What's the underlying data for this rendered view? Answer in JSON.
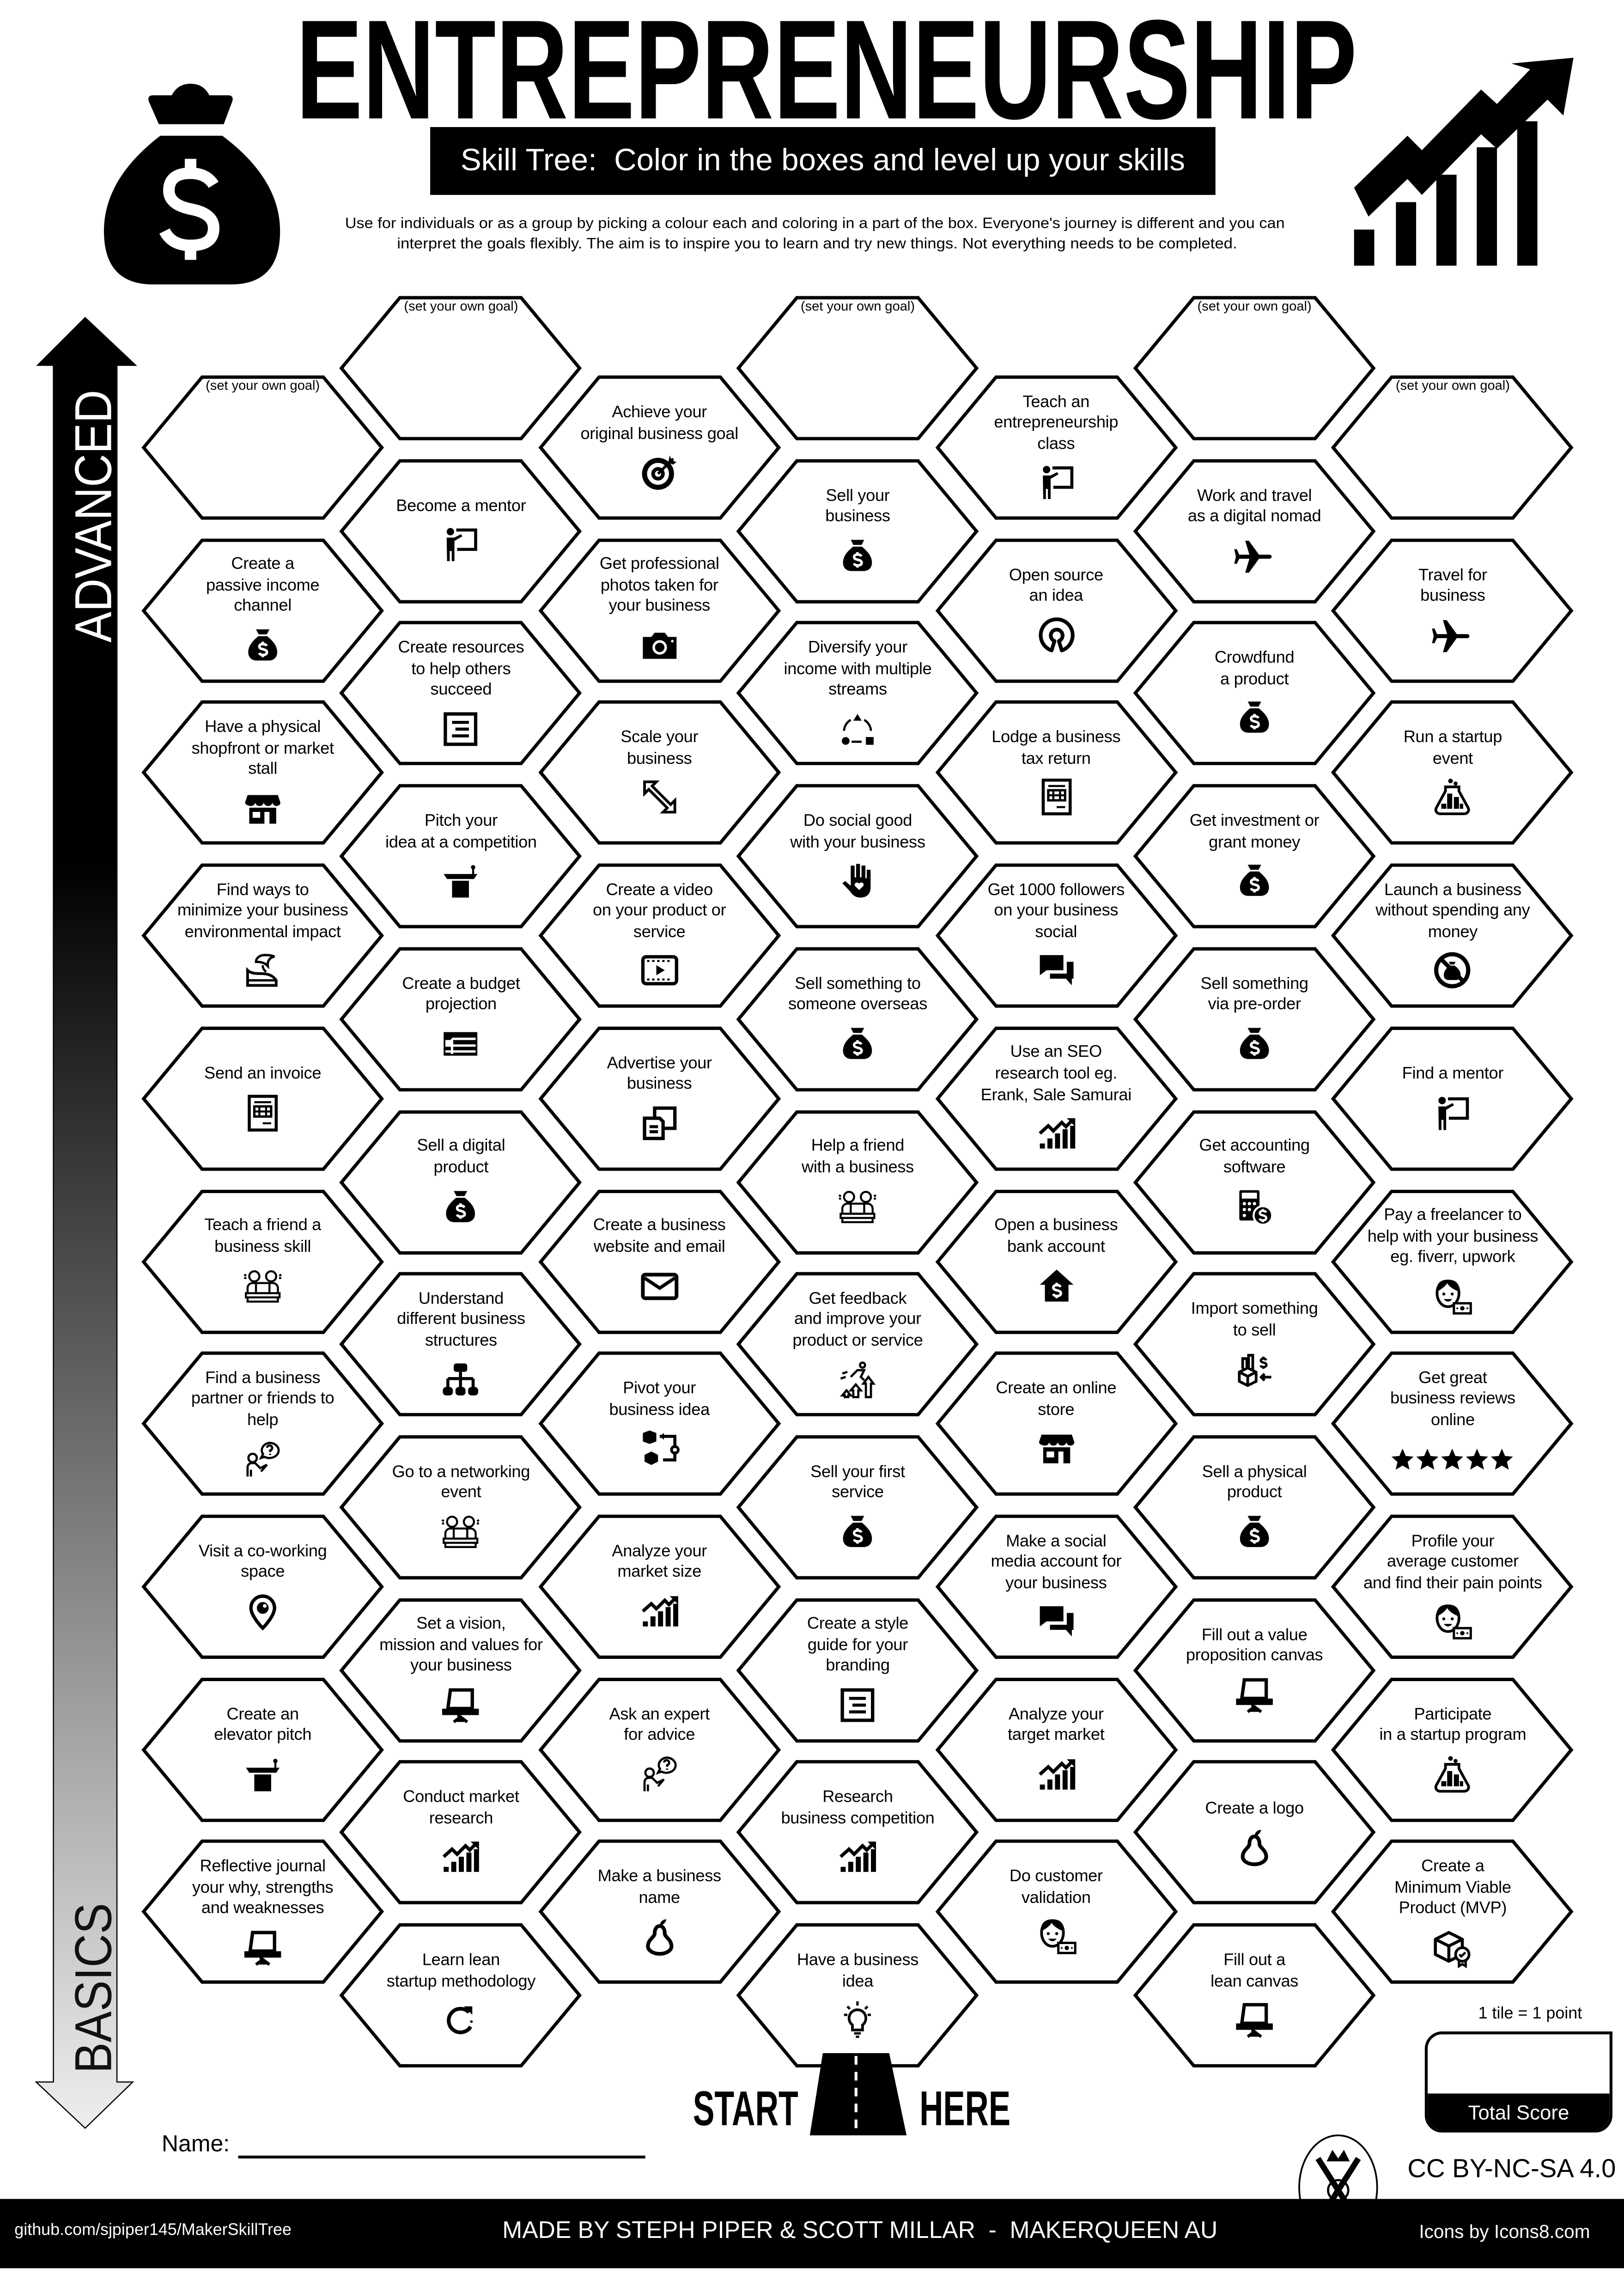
{
  "header": {
    "title": "ENTREPRENEURSHIP",
    "subtitle": "Skill Tree:  Color in the boxes and level up your skills",
    "description_line1": "Use for individuals or as a group by picking a colour each and coloring in a part of the box.  Everyone's journey is different and you can",
    "description_line2": "interpret the goals flexibly.  The aim is to inspire you to learn and try new things. Not everything needs to be completed.",
    "left_icon": "money-bag-icon",
    "right_icon": "growth-chart-icon"
  },
  "axis": {
    "top_label": "ADVANCED",
    "bottom_label": "BASICS",
    "direction": "up"
  },
  "goal_placeholder": "(set your own goal)",
  "columns": [
    [
      {
        "goal": true
      },
      {
        "label": "Create a\npassive income\nchannel",
        "icon": "money-bag"
      },
      {
        "label": "Have a physical\nshopfront or market\nstall",
        "icon": "shop"
      },
      {
        "label": "Find ways to\nminimize your business\nenvironmental impact",
        "icon": "eco"
      },
      {
        "label": "Send an invoice",
        "icon": "invoice"
      },
      {
        "label": "Teach a friend a\nbusiness skill",
        "icon": "friends"
      },
      {
        "label": "Find a business\npartner or friends to\nhelp",
        "icon": "question-person"
      },
      {
        "label": "Visit a co-working\nspace",
        "icon": "pin"
      },
      {
        "label": "Create an\nelevator pitch",
        "icon": "podium"
      },
      {
        "label": "Reflective journal\nyour why, strengths\nand weaknesses",
        "icon": "easel"
      }
    ],
    [
      {
        "goal": true
      },
      {
        "label": "Become a mentor",
        "icon": "presenter"
      },
      {
        "label": "Create resources\nto help others\nsucceed",
        "icon": "doc-lines"
      },
      {
        "label": "Pitch your\nidea at a competition",
        "icon": "podium"
      },
      {
        "label": "Create a budget\nprojection",
        "icon": "table"
      },
      {
        "label": "Sell a digital\nproduct",
        "icon": "money-bag"
      },
      {
        "label": "Understand\ndifferent business\nstructures",
        "icon": "org"
      },
      {
        "label": "Go to a networking\nevent",
        "icon": "friends"
      },
      {
        "label": "Set a vision,\nmission and values for\nyour business",
        "icon": "easel"
      },
      {
        "label": "Conduct market\nresearch",
        "icon": "trend"
      },
      {
        "label": "Learn lean\nstartup methodology",
        "icon": "refresh"
      }
    ],
    [
      {
        "label": "Achieve your\noriginal business goal",
        "icon": "target"
      },
      {
        "label": "Get professional\nphotos taken for\nyour business",
        "icon": "camera"
      },
      {
        "label": "Scale your\nbusiness",
        "icon": "scale"
      },
      {
        "label": "Create a video\non your product or\nservice",
        "icon": "video"
      },
      {
        "label": "Advertise your\nbusiness",
        "icon": "copy"
      },
      {
        "label": "Create a business\nwebsite and email",
        "icon": "envelope"
      },
      {
        "label": "Pivot your\nbusiness idea",
        "icon": "pivot"
      },
      {
        "label": "Analyze your\nmarket size",
        "icon": "trend"
      },
      {
        "label": "Ask an expert\nfor advice",
        "icon": "question-person"
      },
      {
        "label": "Make a business\nname",
        "icon": "pear"
      }
    ],
    [
      {
        "goal": true
      },
      {
        "label": "Sell your\nbusiness",
        "icon": "money-bag"
      },
      {
        "label": "Diversify your\nincome with multiple\nstreams",
        "icon": "diversify"
      },
      {
        "label": "Do social good\nwith your business",
        "icon": "hand"
      },
      {
        "label": "Sell something to\nsomeone overseas",
        "icon": "money-bag"
      },
      {
        "label": "Help a friend\nwith a business",
        "icon": "friends"
      },
      {
        "label": "Get feedback\nand improve your\nproduct or service",
        "icon": "improve"
      },
      {
        "label": "Sell your first\nservice",
        "icon": "money-bag"
      },
      {
        "label": "Create a style\nguide for your\nbranding",
        "icon": "doc-lines"
      },
      {
        "label": "Research\nbusiness competition",
        "icon": "trend"
      },
      {
        "label": "Have a business\nidea",
        "icon": "bulb"
      }
    ],
    [
      {
        "label": "Teach an\nentrepreneurship\nclass",
        "icon": "presenter"
      },
      {
        "label": "Open source\nan idea",
        "icon": "open-source"
      },
      {
        "label": "Lodge a business\ntax return",
        "icon": "invoice"
      },
      {
        "label": "Get 1000 followers\non your business\nsocial",
        "icon": "chat"
      },
      {
        "label": "Use an SEO\nresearch tool eg.\nErank, Sale Samurai",
        "icon": "trend"
      },
      {
        "label": "Open a business\nbank account",
        "icon": "house-dollar"
      },
      {
        "label": "Create an online\nstore",
        "icon": "shop"
      },
      {
        "label": "Make a social\nmedia account for\nyour business",
        "icon": "chat"
      },
      {
        "label": "Analyze your\ntarget market",
        "icon": "trend"
      },
      {
        "label": "Do customer\nvalidation",
        "icon": "customer"
      }
    ],
    [
      {
        "goal": true
      },
      {
        "label": "Work and travel\nas a digital nomad",
        "icon": "plane"
      },
      {
        "label": "Crowdfund\na product",
        "icon": "money-bag"
      },
      {
        "label": "Get investment or\ngrant money",
        "icon": "money-bag"
      },
      {
        "label": "Sell something\nvia pre-order",
        "icon": "money-bag"
      },
      {
        "label": "Get accounting\nsoftware",
        "icon": "calculator"
      },
      {
        "label": "Import something\nto sell",
        "icon": "import"
      },
      {
        "label": "Sell a physical\nproduct",
        "icon": "money-bag"
      },
      {
        "label": "Fill out a value\nproposition canvas",
        "icon": "easel"
      },
      {
        "label": "Create a logo",
        "icon": "pear"
      },
      {
        "label": "Fill out a\nlean canvas",
        "icon": "easel"
      }
    ],
    [
      {
        "goal": true
      },
      {
        "label": "Travel for\nbusiness",
        "icon": "plane"
      },
      {
        "label": "Run a startup\nevent",
        "icon": "flask"
      },
      {
        "label": "Launch a business\nwithout spending any\nmoney",
        "icon": "no-money"
      },
      {
        "label": "Find a mentor",
        "icon": "presenter"
      },
      {
        "label": "Pay a freelancer to\nhelp with your business\neg. fiverr, upwork",
        "icon": "customer"
      },
      {
        "label": "Get great\nbusiness reviews\nonline",
        "icon": "stars"
      },
      {
        "label": "Profile your\naverage customer\nand find their pain points",
        "icon": "customer"
      },
      {
        "label": "Participate\nin a startup program",
        "icon": "flask"
      },
      {
        "label": "Create a\nMinimum Viable\nProduct (MVP)",
        "icon": "mvp"
      }
    ]
  ],
  "start": {
    "left": "START",
    "right": "HERE",
    "icon": "road-icon"
  },
  "name_field": {
    "label": "Name:",
    "value": ""
  },
  "score": {
    "rule": "1 tile = 1 point",
    "label": "Total Score",
    "value": ""
  },
  "license": "CC BY-NC-SA 4.0",
  "footer": {
    "repo": "github.com/sjpiper145/MakerSkillTree",
    "credits": "MADE BY STEPH PIPER & SCOTT MILLAR  -  MAKERQUEEN AU",
    "icons_credit": "Icons by Icons8.com"
  },
  "colors": {
    "ink": "#000000",
    "paper": "#ffffff",
    "arrow_bottom": "#eeeeee"
  }
}
